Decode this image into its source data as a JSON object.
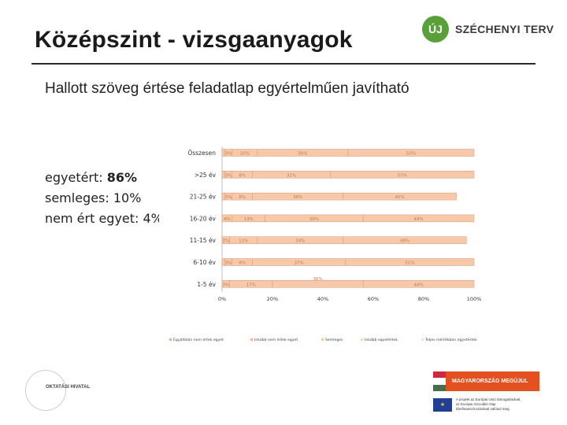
{
  "header": {
    "title": "Középszint - vizsgaanyagok",
    "subtitle": "Hallott szöveg értése feladatlap egyértelműen javítható"
  },
  "logo": {
    "mark": "ÚJ",
    "text": "SZÉCHENYI TERV"
  },
  "summary": {
    "agree_label": "egyetért: ",
    "agree_value": "86%",
    "neutral": "semleges: 10%",
    "disagree": "nem ért egyet: 4%"
  },
  "colors": {
    "bar_fill": "#f6c9aa",
    "bar_border": "#d99a72",
    "legend": [
      "#f1a97c",
      "#f3b58d",
      "#f6c9aa",
      "#f8d6bd",
      "#fae3d2"
    ]
  },
  "chart_data": {
    "type": "bar",
    "orientation": "horizontal",
    "stacked": true,
    "categories": [
      "Összesen",
      ">25 év",
      "21-25 év",
      "16-20 év",
      "11-15 év",
      "6-10 év",
      "1-5 év"
    ],
    "series": [
      {
        "name": "Egyáltalán nem értek egyet",
        "values": [
          1,
          1,
          1,
          0,
          0,
          1,
          0
        ],
        "labels": [
          "1%",
          "1%",
          "1%",
          "0%",
          "0%",
          "1%",
          "0%"
        ]
      },
      {
        "name": "Inkább nem értek egyet",
        "values": [
          3,
          3,
          3,
          4,
          3,
          3,
          3
        ],
        "labels": [
          "3%",
          "3%",
          "3%",
          "4%",
          "3%",
          "3%",
          "3%"
        ]
      },
      {
        "name": "Semleges",
        "values": [
          10,
          8,
          8,
          13,
          11,
          8,
          17
        ],
        "labels": [
          "10%",
          "8%",
          "8%",
          "13%",
          "11%",
          "8%",
          "17%"
        ]
      },
      {
        "name": "Inkább egyetértek",
        "values": [
          36,
          31,
          36,
          39,
          34,
          37,
          36
        ],
        "labels": [
          "36%",
          "31%",
          "36%",
          "39%",
          "34%",
          "37%",
          "36%"
        ]
      },
      {
        "name": "Teljes mértékben egyetértek",
        "values": [
          50,
          57,
          45,
          44,
          49,
          51,
          44
        ],
        "labels": [
          "50%",
          "57%",
          "45%",
          "44%",
          "49%",
          "51%",
          "44%"
        ]
      }
    ],
    "x_ticks": [
      "0%",
      "20%",
      "40%",
      "60%",
      "80%",
      "100%"
    ],
    "xlim": [
      0,
      100
    ]
  },
  "footer": {
    "office": "OKTATÁSI HIVATAL",
    "banner": "MAGYARORSZÁG MEGÚJUL",
    "eu_line1": "A projekt az Európai Unió támogatásával,",
    "eu_line2": "az Európai Szociális Alap",
    "eu_line3": "társfinanszírozásával valósul meg."
  }
}
